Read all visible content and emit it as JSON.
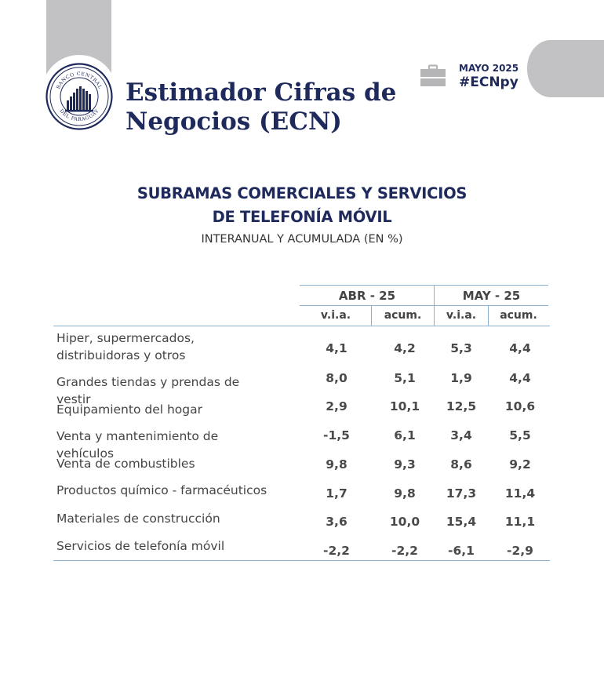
{
  "header": {
    "title_line1": "Estimador Cifras de",
    "title_line2": "Negocios (ECN)",
    "date": "MAYO 2025",
    "hashtag": "#ECNpy",
    "logo_text": "BANCO CENTRAL DEL PARAGUAY",
    "icon": "briefcase-icon"
  },
  "report": {
    "heading_line1": "SUBRAMAS COMERCIALES Y SERVICIOS",
    "heading_line2": "DE TELEFONÍA MÓVIL",
    "subheading": "INTERANUAL Y ACUMULADA (EN %)"
  },
  "table": {
    "groups": [
      "ABR - 25",
      "MAY - 25"
    ],
    "subheaders": [
      "v.i.a.",
      "acum.",
      "v.i.a.",
      "acum."
    ],
    "rows": [
      {
        "label": "Hiper, supermercados, distribuidoras y otros",
        "values": [
          "4,1",
          "4,2",
          "5,3",
          "4,4"
        ]
      },
      {
        "label": "Grandes tiendas y prendas de vestir",
        "values": [
          "8,0",
          "5,1",
          "1,9",
          "4,4"
        ]
      },
      {
        "label": "Equipamiento del hogar",
        "values": [
          "2,9",
          "10,1",
          "12,5",
          "10,6"
        ]
      },
      {
        "label": "Venta y mantenimiento de vehículos",
        "values": [
          "-1,5",
          "6,1",
          "3,4",
          "5,5"
        ]
      },
      {
        "label": "Venta de combustibles",
        "values": [
          "9,8",
          "9,3",
          "8,6",
          "9,2"
        ]
      },
      {
        "label": "Productos químico - farmacéuticos",
        "values": [
          "1,7",
          "9,8",
          "17,3",
          "11,4"
        ]
      },
      {
        "label": "Materiales de construcción",
        "values": [
          "3,6",
          "10,0",
          "15,4",
          "11,1"
        ]
      },
      {
        "label": "Servicios de telefonía móvil",
        "values": [
          "-2,2",
          "-2,2",
          "-6,1",
          "-2,9"
        ]
      }
    ]
  },
  "colors": {
    "navy": "#1f2a5c",
    "grey_block": "#c2c2c4",
    "table_line": "#8fb1d0",
    "text": "#444444"
  }
}
